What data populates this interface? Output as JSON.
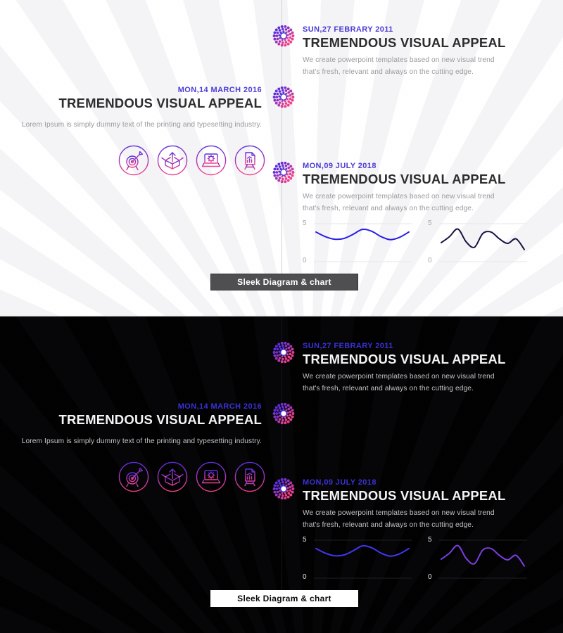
{
  "colors": {
    "accent_light": "#4a3cd6",
    "accent_dark": "#3a31d6",
    "icon_gradient_top": "#5b2ede",
    "icon_gradient_bottom": "#f2408c",
    "badge_purple": "#5b2ede",
    "badge_pink": "#f2408c",
    "light_background": "#fdfdfd",
    "dark_background": "#030303",
    "light_button_bg": "#4f4f52",
    "dark_button_bg": "#ffffff"
  },
  "timeline": {
    "entries": [
      {
        "date": "SUN,27 FEBRARY 2011",
        "title": "TREMENDOUS VISUAL APPEAL",
        "body": "We create powerpoint templates based on new visual trend that's fresh, relevant and always on the cutting edge."
      },
      {
        "date": "MON,14 MARCH 2016",
        "title": "TREMENDOUS VISUAL APPEAL",
        "body": "Lorem Ipsum is simply dummy text of the printing and typesetting industry."
      },
      {
        "date": "MON,09 JULY 2018",
        "title": "TREMENDOUS VISUAL APPEAL",
        "body": "We create powerpoint templates based on new visual trend that's fresh, relevant and always on the cutting edge."
      }
    ],
    "icons": [
      "target-icon",
      "open-box-icon",
      "laptop-gear-icon",
      "presentation-board-icon"
    ],
    "button_label": "Sleek Diagram & chart"
  },
  "chart_data": [
    {
      "type": "line",
      "name": "smooth-wave",
      "x": [
        0,
        1,
        2,
        3,
        4,
        5,
        6,
        7,
        8,
        9,
        10
      ],
      "values": [
        3.9,
        3.3,
        2.95,
        3.05,
        3.6,
        4.25,
        4.0,
        3.3,
        2.9,
        3.2,
        3.9
      ],
      "ylim": [
        0,
        5
      ],
      "yticks": [
        "5",
        "0"
      ],
      "grid": true,
      "legend": "none",
      "color_light": "#2a1ee4",
      "color_dark": "#4435f5"
    },
    {
      "type": "line",
      "name": "jagged-wave",
      "x": [
        0,
        1,
        2,
        3,
        4,
        5,
        6,
        7,
        8,
        9,
        10
      ],
      "values": [
        2.5,
        3.3,
        4.3,
        2.6,
        1.9,
        3.7,
        3.9,
        3.0,
        2.4,
        3.0,
        1.6
      ],
      "ylim": [
        0,
        5
      ],
      "yticks": [
        "5",
        "0"
      ],
      "grid": true,
      "legend": "none",
      "color_light": "#1c1243",
      "color_dark": "#7a3fe0"
    }
  ]
}
